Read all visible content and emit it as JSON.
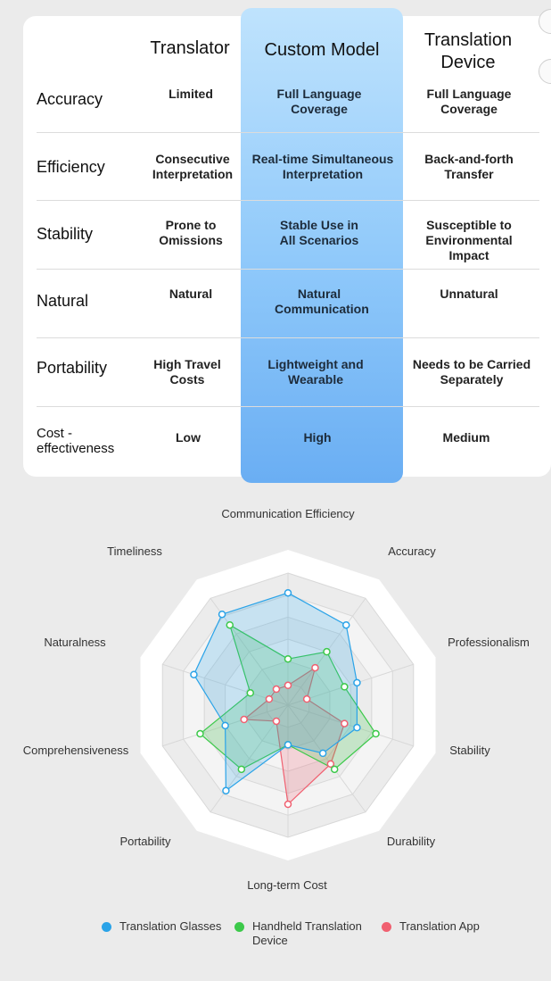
{
  "table": {
    "columns": [
      "Translator",
      "Custom Model",
      "Translation Device"
    ],
    "rows": [
      {
        "label": "Accuracy",
        "values": [
          "Limited",
          "Full Language Coverage",
          "Full Language Coverage"
        ]
      },
      {
        "label": "Efficiency",
        "values": [
          "Consecutive Interpretation",
          "Real-time Simultaneous Interpretation",
          "Back-and-forth Transfer"
        ]
      },
      {
        "label": "Stability",
        "values": [
          "Prone to Omissions",
          "Stable Use in All Scenarios",
          "Susceptible to Environmental Impact"
        ]
      },
      {
        "label": "Natural",
        "values": [
          "Natural",
          "Natural Communication",
          "Unnatural"
        ]
      },
      {
        "label": "Portability",
        "values": [
          "High Travel Costs",
          "Lightweight and Wearable",
          "Needs to be Carried Separately"
        ]
      },
      {
        "label": "Cost -effectiveness",
        "values": [
          "Low",
          "High",
          "Medium"
        ]
      }
    ]
  },
  "chart_data": {
    "type": "radar",
    "axes": [
      "Communication Efficiency",
      "Accuracy",
      "Professionalism",
      "Stability",
      "Durability",
      "Long-term Cost",
      "Portability",
      "Comprehensiveness",
      "Naturalness",
      "Timeliness"
    ],
    "rmax": 10,
    "rings": 6,
    "series": [
      {
        "name": "Translation Glasses",
        "color": "#2aa3e8",
        "values": [
          8.5,
          7.5,
          5.5,
          5.5,
          4.5,
          3.0,
          8.0,
          5.0,
          7.5,
          8.5
        ]
      },
      {
        "name": "Handheld Translation Device",
        "color": "#3cc94a",
        "values": [
          3.5,
          5.0,
          4.5,
          7.0,
          6.0,
          3.0,
          6.0,
          7.0,
          3.0,
          7.5
        ]
      },
      {
        "name": "Translation App",
        "color": "#f06070",
        "values": [
          1.5,
          3.5,
          1.5,
          4.5,
          5.5,
          7.5,
          1.5,
          3.5,
          1.5,
          1.5
        ]
      }
    ],
    "legend_position": "bottom"
  }
}
